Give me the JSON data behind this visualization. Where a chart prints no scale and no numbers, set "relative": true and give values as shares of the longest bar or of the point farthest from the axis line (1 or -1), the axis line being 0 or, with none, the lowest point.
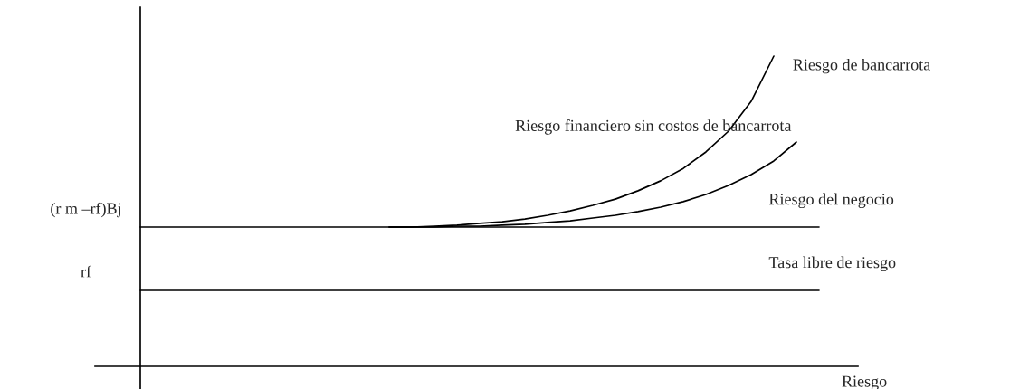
{
  "chart_data": {
    "type": "line",
    "relative": true,
    "categories": [
      null,
      null,
      null,
      null,
      null,
      null,
      null,
      null,
      null,
      null,
      null,
      null,
      null,
      null,
      null,
      null,
      null,
      null,
      null,
      null,
      null,
      null,
      null,
      null,
      null,
      null,
      null,
      null,
      null,
      null,
      null
    ],
    "series": [
      {
        "name": "Riesgo de bancarrota",
        "color": "#000000",
        "values": [
          null,
          null,
          null,
          null,
          null,
          null,
          null,
          null,
          null,
          null,
          null,
          0.449,
          0.449,
          0.452,
          0.455,
          0.461,
          0.466,
          0.475,
          0.487,
          0.501,
          0.519,
          0.539,
          0.566,
          0.598,
          0.638,
          0.691,
          0.758,
          0.854,
          1,
          null,
          null
        ]
      },
      {
        "name": "Riesgo financiero sin costos de bancarrota",
        "color": "#000000",
        "values": [
          null,
          null,
          null,
          null,
          null,
          null,
          null,
          null,
          null,
          null,
          null,
          0.449,
          0.449,
          0.449,
          0.452,
          0.452,
          0.455,
          0.458,
          0.464,
          0.469,
          0.478,
          0.487,
          0.499,
          0.513,
          0.531,
          0.554,
          0.583,
          0.618,
          0.662,
          0.723,
          null
        ]
      },
      {
        "name": "Riesgo del negocio",
        "color": "#000000",
        "values": [
          0.449,
          0.449,
          0.449,
          0.449,
          0.449,
          0.449,
          0.449,
          0.449,
          0.449,
          0.449,
          0.449,
          0.449,
          0.449,
          0.449,
          0.449,
          0.449,
          0.449,
          0.449,
          0.449,
          0.449,
          0.449,
          0.449,
          0.449,
          0.449,
          0.449,
          0.449,
          0.449,
          0.449,
          0.449,
          0.449,
          0.449
        ]
      },
      {
        "name": "Tasa libre de riesgo",
        "color": "#000000",
        "values": [
          0.245,
          0.245,
          0.245,
          0.245,
          0.245,
          0.245,
          0.245,
          0.245,
          0.245,
          0.245,
          0.245,
          0.245,
          0.245,
          0.245,
          0.245,
          0.245,
          0.245,
          0.245,
          0.245,
          0.245,
          0.245,
          0.245,
          0.245,
          0.245,
          0.245,
          0.245,
          0.245,
          0.245,
          0.245,
          0.245,
          0.245
        ]
      }
    ],
    "xlabel": "Riesgo",
    "annotations": [
      "(r m –rf)Bj",
      "rf"
    ]
  }
}
